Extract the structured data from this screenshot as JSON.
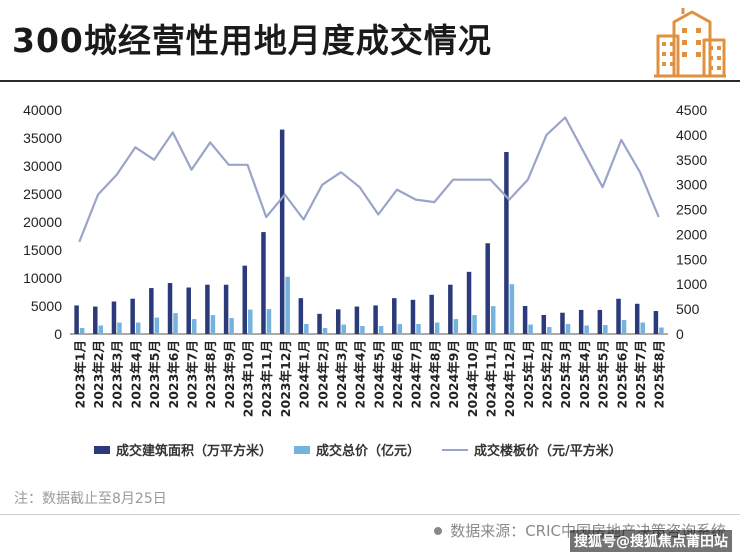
{
  "header": {
    "title": "300城经营性用地月度成交情况"
  },
  "footer": {
    "note": "注：数据截止至8月25日",
    "source": "数据来源：CRIC中国房地产决策咨询系统",
    "watermark": "搜狐号@搜狐焦点莆田站"
  },
  "colors": {
    "area_bar": "#2b3a7a",
    "amount_bar": "#74b3de",
    "price_line": "#9aa4c8",
    "logo": "#e0913f"
  },
  "logo_icon": "buildings-icon",
  "chart_data": {
    "type": "bar",
    "categories": [
      "2023年1月",
      "2023年2月",
      "2023年3月",
      "2023年4月",
      "2023年5月",
      "2023年6月",
      "2023年7月",
      "2023年8月",
      "2023年9月",
      "2023年10月",
      "2023年11月",
      "2023年12月",
      "2024年1月",
      "2024年2月",
      "2024年3月",
      "2024年4月",
      "2024年5月",
      "2024年6月",
      "2024年7月",
      "2024年8月",
      "2024年9月",
      "2024年10月",
      "2024年11月",
      "2024年12月",
      "2025年1月",
      "2025年2月",
      "2025年3月",
      "2025年4月",
      "2025年5月",
      "2025年6月",
      "2025年7月",
      "2025年8月"
    ],
    "series": [
      {
        "name": "成交建筑面积（万平方米）",
        "type": "bar",
        "axis": "left",
        "values": [
          5100,
          4900,
          5800,
          6300,
          8200,
          9100,
          8300,
          8800,
          8800,
          12200,
          18200,
          36500,
          6400,
          3600,
          4400,
          4900,
          5100,
          6400,
          6100,
          7000,
          8800,
          11100,
          16200,
          32500,
          5000,
          3400,
          3800,
          4300,
          4300,
          6300,
          5400,
          4100
        ]
      },
      {
        "name": "成交总价（亿元）",
        "type": "bar",
        "axis": "right",
        "values": [
          120,
          170,
          230,
          230,
          330,
          420,
          300,
          380,
          320,
          490,
          500,
          1150,
          200,
          120,
          190,
          160,
          160,
          200,
          200,
          230,
          300,
          380,
          560,
          1000,
          190,
          140,
          200,
          170,
          180,
          280,
          230,
          130
        ]
      },
      {
        "name": "成交楼板价（元/平方米）",
        "type": "line",
        "axis": "right",
        "values": [
          1850,
          2800,
          3200,
          3750,
          3500,
          4050,
          3300,
          3850,
          3400,
          3400,
          2350,
          2800,
          2300,
          3000,
          3250,
          2950,
          2400,
          2900,
          2700,
          2650,
          3100,
          3100,
          3100,
          2700,
          3100,
          4000,
          4350,
          3650,
          2950,
          3900,
          3250,
          2350
        ]
      }
    ],
    "left_axis": {
      "min": 0,
      "max": 40000,
      "ticks": [
        0,
        5000,
        10000,
        15000,
        20000,
        25000,
        30000,
        35000,
        40000
      ]
    },
    "right_axis": {
      "min": 0,
      "max": 4500,
      "ticks": [
        0,
        500,
        1000,
        1500,
        2000,
        2500,
        3000,
        3500,
        4000,
        4500
      ]
    },
    "grid": false,
    "legend_position": "bottom"
  }
}
